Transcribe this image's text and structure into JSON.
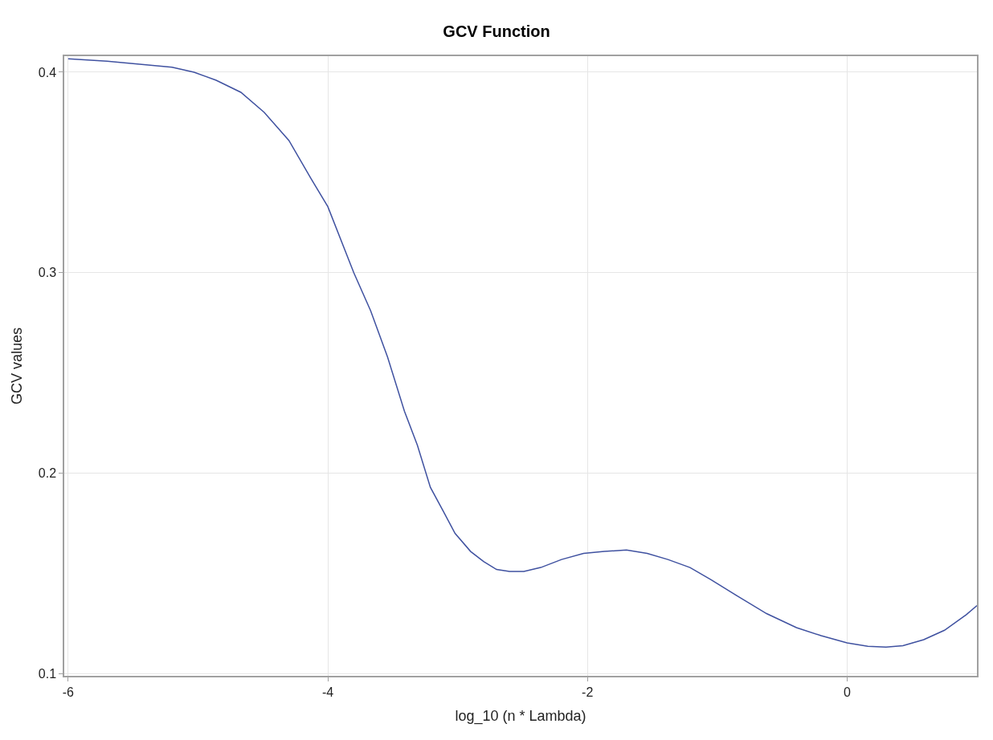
{
  "chart_data": {
    "type": "line",
    "title": "GCV Function",
    "xlabel": "log_10 (n * Lambda)",
    "ylabel": "GCV values",
    "x": [
      -6,
      -5.7,
      -5.45,
      -5.2,
      -5.03,
      -4.86,
      -4.67,
      -4.49,
      -4.3,
      -4.13,
      -4.0,
      -3.8,
      -3.67,
      -3.54,
      -3.41,
      -3.31,
      -3.21,
      -3.11,
      -3.02,
      -2.9,
      -2.8,
      -2.7,
      -2.6,
      -2.49,
      -2.36,
      -2.2,
      -2.03,
      -1.87,
      -1.7,
      -1.54,
      -1.38,
      -1.21,
      -1.05,
      -0.85,
      -0.62,
      -0.39,
      -0.2,
      0,
      0.16,
      0.3,
      0.43,
      0.59,
      0.75,
      0.92,
      1.0
    ],
    "series": [
      {
        "color": "#3f51a0",
        "values": [
          0.4067,
          0.4055,
          0.404,
          0.4025,
          0.4,
          0.396,
          0.39,
          0.38,
          0.366,
          0.347,
          0.333,
          0.3,
          0.281,
          0.258,
          0.231,
          0.214,
          0.193,
          0.181,
          0.17,
          0.161,
          0.156,
          0.152,
          0.151,
          0.151,
          0.153,
          0.157,
          0.16,
          0.161,
          0.1617,
          0.16,
          0.157,
          0.153,
          0.147,
          0.139,
          0.13,
          0.123,
          0.119,
          0.1154,
          0.1137,
          0.1133,
          0.114,
          0.117,
          0.1217,
          0.1296,
          0.134
        ]
      }
    ],
    "xlim": [
      -6.03,
      1.0
    ],
    "xticks": [
      -6,
      -4,
      -2,
      0
    ],
    "ylim": [
      0.099,
      0.408
    ],
    "yticks": [
      0.1,
      0.2,
      0.3,
      0.4
    ],
    "grid": true,
    "legend": false,
    "marker": "none",
    "line_style": "solid"
  }
}
